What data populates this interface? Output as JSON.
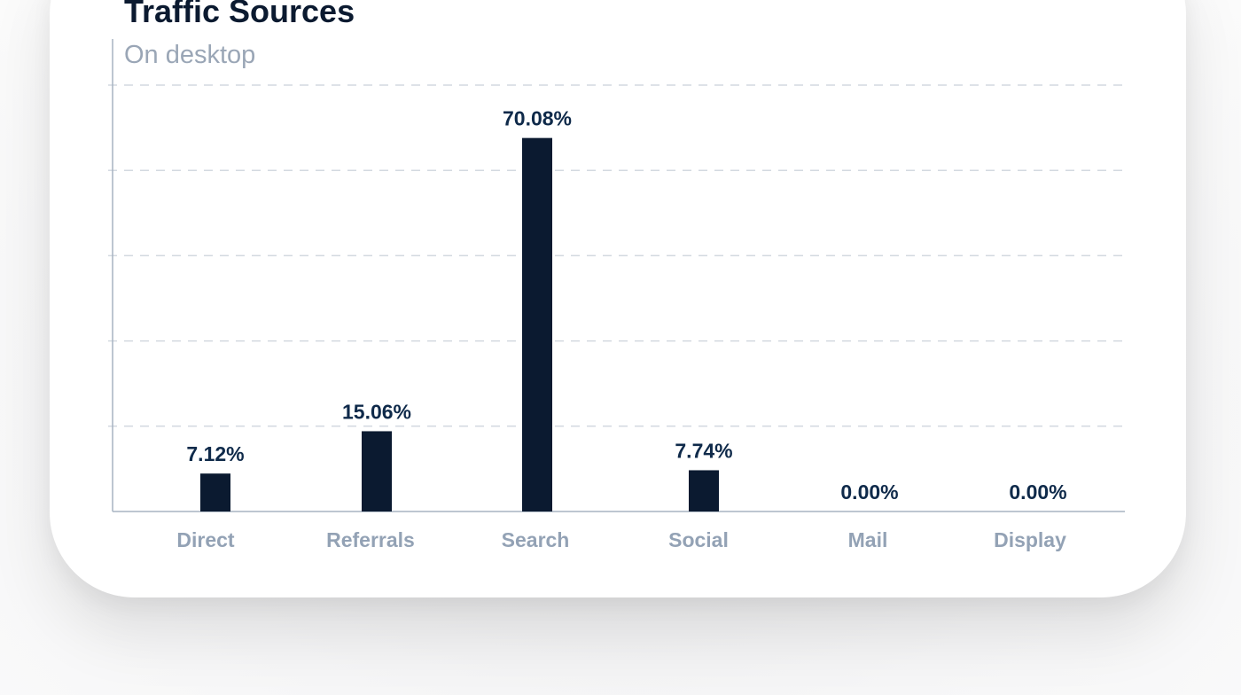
{
  "chart_data": {
    "type": "bar",
    "title": "Traffic Sources",
    "subtitle": "On desktop",
    "categories": [
      "Direct",
      "Referrals",
      "Search",
      "Social",
      "Mail",
      "Display"
    ],
    "values": [
      7.12,
      15.06,
      70.08,
      7.74,
      0.0,
      0.0
    ],
    "value_labels": [
      "7.12%",
      "15.06%",
      "70.08%",
      "7.74%",
      "0.00%",
      "0.00%"
    ],
    "ylim": [
      0,
      80
    ],
    "grid": true,
    "legend": "none",
    "xlabel": "",
    "ylabel": ""
  },
  "colors": {
    "bar": "#0b1a30",
    "value_label": "#0f2a4a",
    "category_label": "#93a2b5",
    "title": "#0b1a30",
    "subtitle": "#9aa6b6"
  }
}
